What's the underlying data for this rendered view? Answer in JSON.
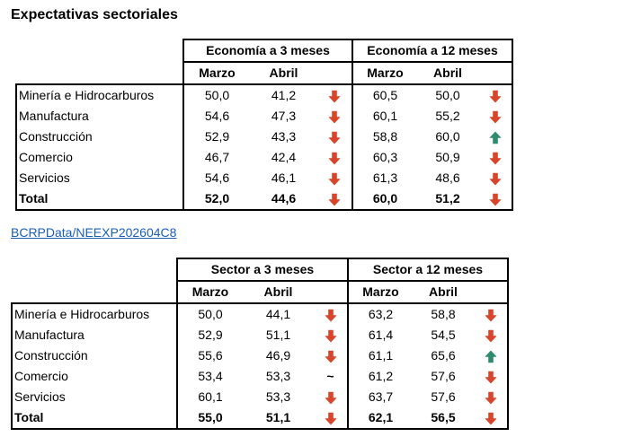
{
  "title": "Expectativas sectoriales",
  "link": "BCRPData/NEEXP202604C8",
  "colors": {
    "down": "#d9452b",
    "up": "#2e8b6e",
    "link": "#1a5fb4"
  },
  "table1": {
    "group_left": "Economía a 3 meses",
    "group_right": "Economía a 12 meses",
    "col_marzo": "Marzo",
    "col_abril": "Abril",
    "rows": [
      {
        "label": "Minería e Hidrocarburos",
        "m3": "50,0",
        "a3": "41,2",
        "t3": "down",
        "m12": "60,5",
        "a12": "50,0",
        "t12": "down"
      },
      {
        "label": "Manufactura",
        "m3": "54,6",
        "a3": "47,3",
        "t3": "down",
        "m12": "60,1",
        "a12": "55,2",
        "t12": "down"
      },
      {
        "label": "Construcción",
        "m3": "52,9",
        "a3": "43,3",
        "t3": "down",
        "m12": "58,8",
        "a12": "60,0",
        "t12": "up"
      },
      {
        "label": "Comercio",
        "m3": "46,7",
        "a3": "42,4",
        "t3": "down",
        "m12": "60,3",
        "a12": "50,9",
        "t12": "down"
      },
      {
        "label": "Servicios",
        "m3": "54,6",
        "a3": "46,1",
        "t3": "down",
        "m12": "61,3",
        "a12": "48,6",
        "t12": "down"
      },
      {
        "label": "Total",
        "m3": "52,0",
        "a3": "44,6",
        "t3": "down",
        "m12": "60,0",
        "a12": "51,2",
        "t12": "down"
      }
    ]
  },
  "table2": {
    "group_left": "Sector a 3 meses",
    "group_right": "Sector a 12 meses",
    "col_marzo": "Marzo",
    "col_abril": "Abril",
    "rows": [
      {
        "label": "Minería e Hidrocarburos",
        "m3": "50,0",
        "a3": "44,1",
        "t3": "down",
        "m12": "63,2",
        "a12": "58,8",
        "t12": "down"
      },
      {
        "label": "Manufactura",
        "m3": "52,9",
        "a3": "51,1",
        "t3": "down",
        "m12": "61,4",
        "a12": "54,5",
        "t12": "down"
      },
      {
        "label": "Construcción",
        "m3": "55,6",
        "a3": "46,9",
        "t3": "down",
        "m12": "61,1",
        "a12": "65,6",
        "t12": "up"
      },
      {
        "label": "Comercio",
        "m3": "53,4",
        "a3": "53,3",
        "t3": "neutral",
        "m12": "61,2",
        "a12": "57,6",
        "t12": "down"
      },
      {
        "label": "Servicios",
        "m3": "60,1",
        "a3": "53,3",
        "t3": "down",
        "m12": "63,7",
        "a12": "57,6",
        "t12": "down"
      },
      {
        "label": "Total",
        "m3": "55,0",
        "a3": "51,1",
        "t3": "down",
        "m12": "62,1",
        "a12": "56,5",
        "t12": "down"
      }
    ]
  }
}
